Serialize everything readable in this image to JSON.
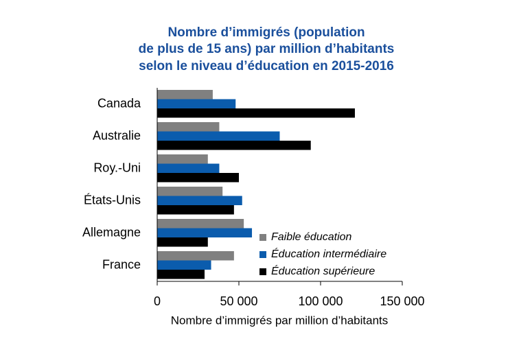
{
  "chart_data": {
    "type": "barh",
    "title": [
      "Nombre d’immigrés (population",
      "de plus de 15 ans) par million d’habitants",
      "selon le niveau d’éducation en 2015-2016"
    ],
    "x_label": "Nombre d’immigrés par million d’habitants",
    "categories": [
      "Canada",
      "Australie",
      "Roy.-Uni",
      "États-Unis",
      "Allemagne",
      "France"
    ],
    "series": [
      {
        "name": "Faible éducation",
        "color": "#808080",
        "values": [
          34000,
          38000,
          31000,
          40000,
          53000,
          47000
        ]
      },
      {
        "name": "Éducation intermédiaire",
        "color": "#0b5cad",
        "values": [
          48000,
          75000,
          38000,
          52000,
          58000,
          33000
        ]
      },
      {
        "name": "Éducation supérieure",
        "color": "#000000",
        "values": [
          121000,
          94000,
          50000,
          47000,
          31000,
          29000
        ]
      }
    ],
    "xlim": [
      0,
      150000
    ],
    "xticks": [
      0,
      {
        "value": 50000,
        "label": "50 000"
      },
      {
        "value": 100000,
        "label": "100 000"
      },
      {
        "value": 150000,
        "label": "150 000"
      }
    ],
    "legend": "lower-right"
  }
}
